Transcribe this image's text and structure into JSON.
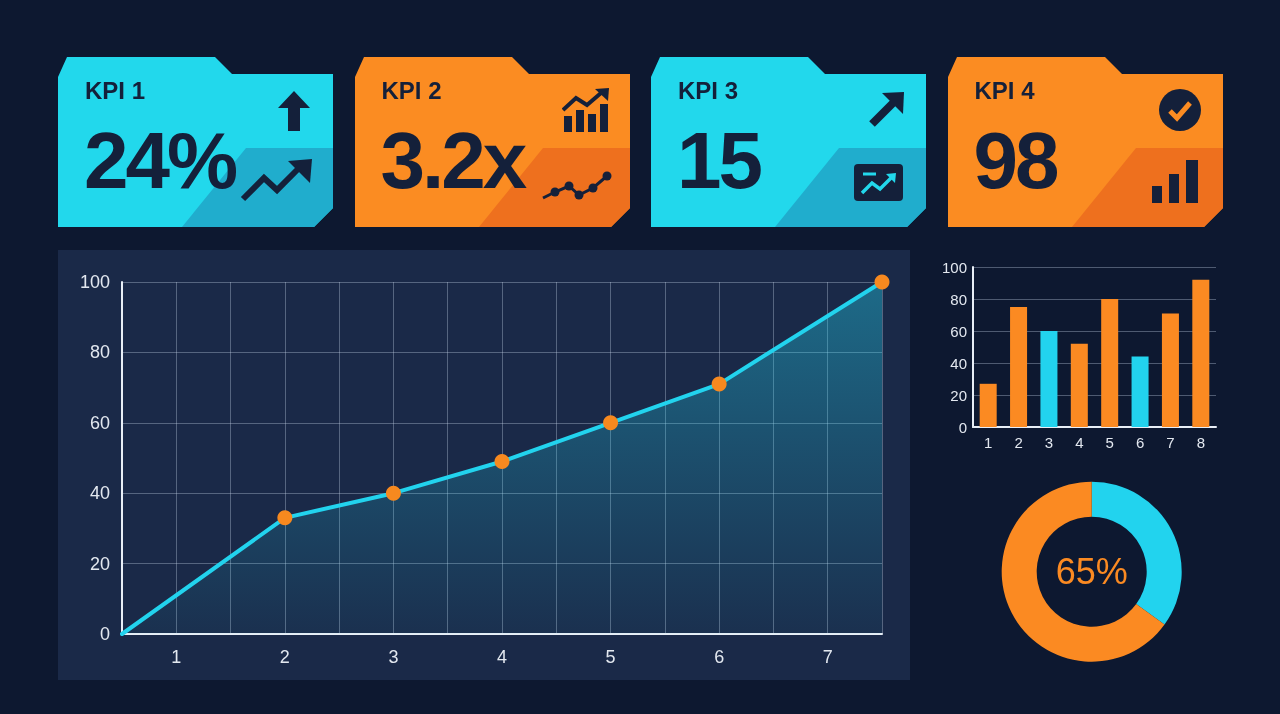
{
  "chart_data": [
    {
      "type": "other",
      "title": "KPI 1",
      "annotations": [
        "24%"
      ],
      "color": "#22d8ec"
    },
    {
      "type": "other",
      "title": "KPI 2",
      "annotations": [
        "3.2x"
      ],
      "color": "#fb8c22"
    },
    {
      "type": "other",
      "title": "KPI 3",
      "annotations": [
        "15"
      ],
      "color": "#22d8ec"
    },
    {
      "type": "other",
      "title": "KPI 4",
      "annotations": [
        "98"
      ],
      "color": "#fb8c22"
    },
    {
      "type": "area",
      "xlim": [
        0.5,
        7.5
      ],
      "xticks": [
        1,
        {
          "value": 1.5,
          "label": null
        },
        2,
        {
          "value": 2.5,
          "label": null
        },
        3,
        {
          "value": 3.5,
          "label": null
        },
        4,
        {
          "value": 4.5,
          "label": null
        },
        5,
        {
          "value": 5.5,
          "label": null
        },
        6,
        {
          "value": 6.5,
          "label": null
        },
        7
      ],
      "ylim": [
        0,
        100
      ],
      "yticks": [
        0,
        20,
        40,
        60,
        80,
        100
      ],
      "grid": true,
      "series": [
        {
          "type": "area",
          "color": "#22d3ee",
          "x": [
            0.5,
            2,
            3,
            4,
            5,
            6,
            7.5
          ],
          "values": [
            0,
            33,
            40,
            49,
            60,
            71,
            100
          ],
          "marker": "none"
        },
        {
          "type": "scatter",
          "color": "#f7891f",
          "x": [
            2,
            3,
            4,
            5,
            6,
            7.5
          ],
          "values": [
            33,
            40,
            49,
            60,
            71,
            100
          ],
          "marker": "circle"
        }
      ]
    },
    {
      "type": "bar",
      "categories": [
        "1",
        "2",
        "3",
        "4",
        "5",
        "6",
        "7",
        "8"
      ],
      "values": [
        27,
        75,
        60,
        52,
        80,
        44,
        71,
        92
      ],
      "colors": [
        "#fb8a22",
        "#fb8a22",
        "#22d3ee",
        "#fb8a22",
        "#fb8a22",
        "#22d3ee",
        "#fb8a22",
        "#fb8a22"
      ],
      "ylim": [
        0,
        100
      ],
      "yticks": [
        0,
        20,
        40,
        60,
        80,
        100
      ],
      "grid": "y"
    },
    {
      "type": "donut",
      "categories": [
        null,
        null
      ],
      "values": [
        35,
        65
      ],
      "colors": [
        "#22d3ee",
        "#fb8a22"
      ],
      "annotations": [
        "65%"
      ]
    }
  ]
}
